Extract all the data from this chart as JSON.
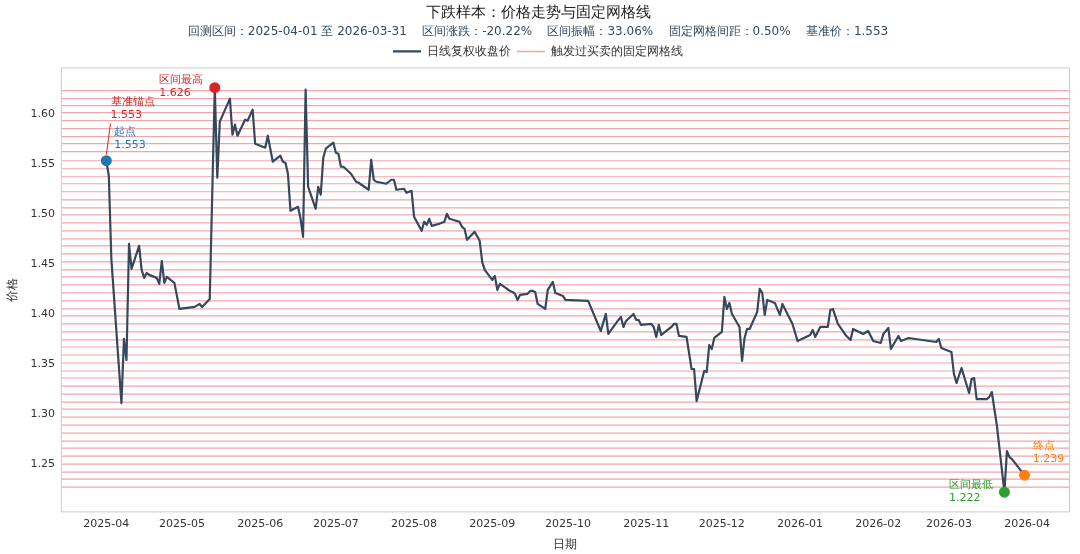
{
  "chart_data": {
    "type": "line",
    "title": "下跌样本：价格走势与固定网格线",
    "subtitle": "回测区间：2025-04-01 至 2026-03-31    区间涨跌：-20.22%    区间振幅：33.06%    固定网格间距：0.50%    基准价：1.553",
    "xlabel": "日期",
    "ylabel": "价格",
    "legend": "top",
    "xlim": [
      "2025-03-14",
      "2026-04-18"
    ],
    "xticks": [
      "2025-04",
      "2025-05",
      "2025-06",
      "2025-07",
      "2025-08",
      "2025-09",
      "2025-10",
      "2025-11",
      "2025-12",
      "2026-01",
      "2026-02",
      "2026-03",
      "2026-04"
    ],
    "ylim": [
      1.2018,
      1.6462
    ],
    "yticks": [
      1.25,
      {
        "value": 1.3,
        "label": "1.30"
      },
      1.35,
      {
        "value": 1.4,
        "label": "1.40"
      },
      1.45,
      {
        "value": 1.5,
        "label": "1.50"
      },
      1.55,
      {
        "value": 1.6,
        "label": "1.60"
      }
    ],
    "x": [
      "2025-04-01",
      "2025-04-02",
      "2025-04-03",
      "2025-04-07",
      "2025-04-08",
      "2025-04-09",
      "2025-04-10",
      "2025-04-11",
      "2025-04-14",
      "2025-04-15",
      "2025-04-16",
      "2025-04-17",
      "2025-04-18",
      "2025-04-21",
      "2025-04-22",
      "2025-04-23",
      "2025-04-24",
      "2025-04-25",
      "2025-04-28",
      "2025-04-30",
      "2025-05-06",
      "2025-05-08",
      "2025-05-09",
      "2025-05-12",
      "2025-05-14",
      "2025-05-15",
      "2025-05-16",
      "2025-05-20",
      "2025-05-21",
      "2025-05-22",
      "2025-05-23",
      "2025-05-26",
      "2025-05-27",
      "2025-05-29",
      "2025-05-30",
      "2025-06-03",
      "2025-06-04",
      "2025-06-06",
      "2025-06-09",
      "2025-06-10",
      "2025-06-11",
      "2025-06-12",
      "2025-06-13",
      "2025-06-16",
      "2025-06-17",
      "2025-06-18",
      "2025-06-19",
      "2025-06-20",
      "2025-06-23",
      "2025-06-24",
      "2025-06-25",
      "2025-06-26",
      "2025-06-27",
      "2025-06-30",
      "2025-07-01",
      "2025-07-02",
      "2025-07-03",
      "2025-07-04",
      "2025-07-07",
      "2025-07-09",
      "2025-07-10",
      "2025-07-14",
      "2025-07-15",
      "2025-07-16",
      "2025-07-17",
      "2025-07-21",
      "2025-07-23",
      "2025-07-24",
      "2025-07-25",
      "2025-07-28",
      "2025-07-29",
      "2025-07-31",
      "2025-08-01",
      "2025-08-04",
      "2025-08-05",
      "2025-08-06",
      "2025-08-07",
      "2025-08-08",
      "2025-08-11",
      "2025-08-13",
      "2025-08-14",
      "2025-08-15",
      "2025-08-19",
      "2025-08-20",
      "2025-08-21",
      "2025-08-22",
      "2025-08-25",
      "2025-08-27",
      "2025-08-28",
      "2025-08-29",
      "2025-09-01",
      "2025-09-02",
      "2025-09-03",
      "2025-09-04",
      "2025-09-08",
      "2025-09-09",
      "2025-09-10",
      "2025-09-11",
      "2025-09-12",
      "2025-09-15",
      "2025-09-16",
      "2025-09-17",
      "2025-09-18",
      "2025-09-19",
      "2025-09-22",
      "2025-09-23",
      "2025-09-25",
      "2025-09-26",
      "2025-09-29",
      "2025-09-30",
      "2025-10-09",
      "2025-10-14",
      "2025-10-16",
      "2025-10-17",
      "2025-10-21",
      "2025-10-22",
      "2025-10-23",
      "2025-10-24",
      "2025-10-27",
      "2025-10-28",
      "2025-10-29",
      "2025-10-30",
      "2025-11-03",
      "2025-11-04",
      "2025-11-05",
      "2025-11-06",
      "2025-11-07",
      "2025-11-10",
      "2025-11-11",
      "2025-11-12",
      "2025-11-13",
      "2025-11-14",
      "2025-11-17",
      "2025-11-19",
      "2025-11-20",
      "2025-11-21",
      "2025-11-24",
      "2025-11-25",
      "2025-11-26",
      "2025-11-27",
      "2025-11-28",
      "2025-12-01",
      "2025-12-02",
      "2025-12-03",
      "2025-12-04",
      "2025-12-05",
      "2025-12-08",
      "2025-12-09",
      "2025-12-10",
      "2025-12-11",
      "2025-12-12",
      "2025-12-15",
      "2025-12-16",
      "2025-12-17",
      "2025-12-18",
      "2025-12-19",
      "2025-12-22",
      "2025-12-24",
      "2025-12-25",
      "2025-12-29",
      "2025-12-31",
      "2026-01-05",
      "2026-01-06",
      "2026-01-07",
      "2026-01-09",
      "2026-01-12",
      "2026-01-13",
      "2026-01-14",
      "2026-01-16",
      "2026-01-19",
      "2026-01-21",
      "2026-01-22",
      "2026-01-26",
      "2026-01-28",
      "2026-01-30",
      "2026-02-02",
      "2026-02-03",
      "2026-02-05",
      "2026-02-06",
      "2026-02-09",
      "2026-02-10",
      "2026-02-13",
      "2026-02-24",
      "2026-02-25",
      "2026-02-26",
      "2026-03-02",
      "2026-03-03",
      "2026-03-04",
      "2026-03-06",
      "2026-03-09",
      "2026-03-10",
      "2026-03-11",
      "2026-03-12",
      "2026-03-16",
      "2026-03-17",
      "2026-03-18",
      "2026-03-20",
      "2026-03-23",
      "2026-03-24",
      "2026-03-25",
      "2026-03-26",
      "2026-03-30",
      "2026-03-31"
    ],
    "series": [
      {
        "name": "日线复权收盘价",
        "color": "#34495e",
        "values": [
          1.553,
          1.538,
          1.455,
          1.311,
          1.375,
          1.354,
          1.47,
          1.445,
          1.468,
          1.444,
          1.436,
          1.441,
          1.439,
          1.436,
          1.43,
          1.453,
          1.431,
          1.437,
          1.431,
          1.405,
          1.407,
          1.41,
          1.407,
          1.415,
          1.626,
          1.536,
          1.592,
          1.615,
          1.579,
          1.589,
          1.578,
          1.594,
          1.593,
          1.604,
          1.57,
          1.566,
          1.578,
          1.552,
          1.558,
          1.552,
          1.551,
          1.54,
          1.503,
          1.507,
          1.495,
          1.477,
          1.624,
          1.527,
          1.505,
          1.527,
          1.519,
          1.556,
          1.565,
          1.571,
          1.561,
          1.56,
          1.547,
          1.547,
          1.54,
          1.532,
          1.531,
          1.524,
          1.554,
          1.534,
          1.532,
          1.53,
          1.534,
          1.534,
          1.524,
          1.525,
          1.521,
          1.523,
          1.497,
          1.483,
          1.492,
          1.489,
          1.495,
          1.488,
          1.49,
          1.492,
          1.5,
          1.495,
          1.492,
          1.487,
          1.485,
          1.474,
          1.482,
          1.473,
          1.452,
          1.444,
          1.434,
          1.438,
          1.424,
          1.43,
          1.423,
          1.422,
          1.42,
          1.414,
          1.419,
          1.42,
          1.423,
          1.423,
          1.422,
          1.41,
          1.405,
          1.424,
          1.432,
          1.421,
          1.418,
          1.414,
          1.413,
          1.383,
          1.4,
          1.38,
          1.394,
          1.397,
          1.387,
          1.393,
          1.4,
          1.394,
          1.394,
          1.389,
          1.39,
          1.387,
          1.377,
          1.389,
          1.379,
          1.385,
          1.387,
          1.39,
          1.39,
          1.378,
          1.377,
          1.345,
          1.345,
          1.313,
          1.343,
          1.342,
          1.369,
          1.365,
          1.376,
          1.382,
          1.417,
          1.405,
          1.411,
          1.4,
          1.387,
          1.353,
          1.376,
          1.385,
          1.385,
          1.402,
          1.425,
          1.421,
          1.399,
          1.414,
          1.411,
          1.399,
          1.41,
          1.39,
          1.373,
          1.379,
          1.384,
          1.377,
          1.387,
          1.387,
          1.404,
          1.405,
          1.39,
          1.379,
          1.374,
          1.385,
          1.38,
          1.383,
          1.373,
          1.371,
          1.38,
          1.386,
          1.365,
          1.378,
          1.373,
          1.376,
          1.372,
          1.375,
          1.366,
          1.362,
          1.34,
          1.331,
          1.346,
          1.321,
          1.335,
          1.336,
          1.315,
          1.315,
          1.317,
          1.322,
          1.289,
          1.222,
          1.263,
          1.257,
          1.255,
          1.242,
          1.239
        ]
      },
      {
        "type": "scatter",
        "name": "起点",
        "color": "#1f77b4",
        "x": [
          "2025-04-01"
        ],
        "values": [
          1.553
        ],
        "data_labels": true
      },
      {
        "type": "scatter",
        "name": "区间最高",
        "color": "#d62728",
        "x": [
          "2025-05-14"
        ],
        "values": [
          1.626
        ],
        "data_labels": true
      },
      {
        "type": "scatter",
        "name": "区间最低",
        "color": "#2ca02c",
        "x": [
          "2026-03-23"
        ],
        "values": [
          1.222
        ],
        "data_labels": true
      },
      {
        "type": "scatter",
        "name": "终点",
        "color": "#ff7f0e",
        "x": [
          "2026-03-31"
        ],
        "values": [
          1.239
        ],
        "data_labels": true
      }
    ],
    "annotations": [
      {
        "text": "基准锚点\n1.553",
        "x": "2025-04-01",
        "y": 1.553
      }
    ],
    "ref_lines": [
      {
        "axis": "y",
        "value": 1.623,
        "color": "#f0a6ab",
        "label": "触发过买卖的固定网格线"
      },
      {
        "axis": "y",
        "value": 1.615,
        "color": "#f0a6ab"
      },
      {
        "axis": "y",
        "value": 1.608,
        "color": "#f0a6ab"
      },
      {
        "axis": "y",
        "value": 1.601,
        "color": "#f0a6ab"
      },
      {
        "axis": "y",
        "value": 1.593,
        "color": "#f0a6ab"
      },
      {
        "axis": "y",
        "value": 1.585,
        "color": "#f0a6ab"
      },
      {
        "axis": "y",
        "value": 1.577,
        "color": "#f0a6ab"
      },
      {
        "axis": "y",
        "value": 1.57,
        "color": "#f0a6ab"
      },
      {
        "axis": "y",
        "value": 1.562,
        "color": "#f0a6ab"
      },
      {
        "axis": "y",
        "value": 1.553,
        "color": "#f0a6ab"
      },
      {
        "axis": "y",
        "value": 1.545,
        "color": "#f0a6ab"
      },
      {
        "axis": "y",
        "value": 1.537,
        "color": "#f0a6ab"
      },
      {
        "axis": "y",
        "value": 1.53,
        "color": "#f0a6ab"
      },
      {
        "axis": "y",
        "value": 1.522,
        "color": "#f0a6ab"
      },
      {
        "axis": "y",
        "value": 1.514,
        "color": "#f0a6ab"
      },
      {
        "axis": "y",
        "value": 1.506,
        "color": "#f0a6ab"
      },
      {
        "axis": "y",
        "value": 1.499,
        "color": "#f0a6ab"
      },
      {
        "axis": "y",
        "value": 1.491,
        "color": "#f0a6ab"
      },
      {
        "axis": "y",
        "value": 1.483,
        "color": "#f0a6ab"
      },
      {
        "axis": "y",
        "value": 1.475,
        "color": "#f0a6ab"
      },
      {
        "axis": "y",
        "value": 1.468,
        "color": "#f0a6ab"
      },
      {
        "axis": "y",
        "value": 1.46,
        "color": "#f0a6ab"
      },
      {
        "axis": "y",
        "value": 1.452,
        "color": "#f0a6ab"
      },
      {
        "axis": "y",
        "value": 1.444,
        "color": "#f0a6ab"
      },
      {
        "axis": "y",
        "value": 1.437,
        "color": "#f0a6ab"
      },
      {
        "axis": "y",
        "value": 1.429,
        "color": "#f0a6ab"
      },
      {
        "axis": "y",
        "value": 1.421,
        "color": "#f0a6ab"
      },
      {
        "axis": "y",
        "value": 1.413,
        "color": "#f0a6ab"
      },
      {
        "axis": "y",
        "value": 1.405,
        "color": "#f0a6ab"
      },
      {
        "axis": "y",
        "value": 1.398,
        "color": "#f0a6ab"
      },
      {
        "axis": "y",
        "value": 1.39,
        "color": "#f0a6ab"
      },
      {
        "axis": "y",
        "value": 1.382,
        "color": "#f0a6ab"
      },
      {
        "axis": "y",
        "value": 1.374,
        "color": "#f0a6ab"
      },
      {
        "axis": "y",
        "value": 1.367,
        "color": "#f0a6ab"
      },
      {
        "axis": "y",
        "value": 1.359,
        "color": "#f0a6ab"
      },
      {
        "axis": "y",
        "value": 1.351,
        "color": "#f0a6ab"
      },
      {
        "axis": "y",
        "value": 1.343,
        "color": "#f0a6ab"
      },
      {
        "axis": "y",
        "value": 1.336,
        "color": "#f0a6ab"
      },
      {
        "axis": "y",
        "value": 1.328,
        "color": "#f0a6ab"
      },
      {
        "axis": "y",
        "value": 1.32,
        "color": "#f0a6ab"
      },
      {
        "axis": "y",
        "value": 1.312,
        "color": "#f0a6ab"
      },
      {
        "axis": "y",
        "value": 1.305,
        "color": "#f0a6ab"
      },
      {
        "axis": "y",
        "value": 1.297,
        "color": "#f0a6ab"
      },
      {
        "axis": "y",
        "value": 1.289,
        "color": "#f0a6ab"
      },
      {
        "axis": "y",
        "value": 1.281,
        "color": "#f0a6ab"
      },
      {
        "axis": "y",
        "value": 1.273,
        "color": "#f0a6ab"
      },
      {
        "axis": "y",
        "value": 1.266,
        "color": "#f0a6ab"
      },
      {
        "axis": "y",
        "value": 1.258,
        "color": "#f0a6ab"
      },
      {
        "axis": "y",
        "value": 1.25,
        "color": "#f0a6ab"
      },
      {
        "axis": "y",
        "value": 1.242,
        "color": "#f0a6ab"
      },
      {
        "axis": "y",
        "value": 1.235,
        "color": "#f0a6ab"
      },
      {
        "axis": "y",
        "value": 1.227,
        "color": "#f0a6ab"
      }
    ]
  }
}
